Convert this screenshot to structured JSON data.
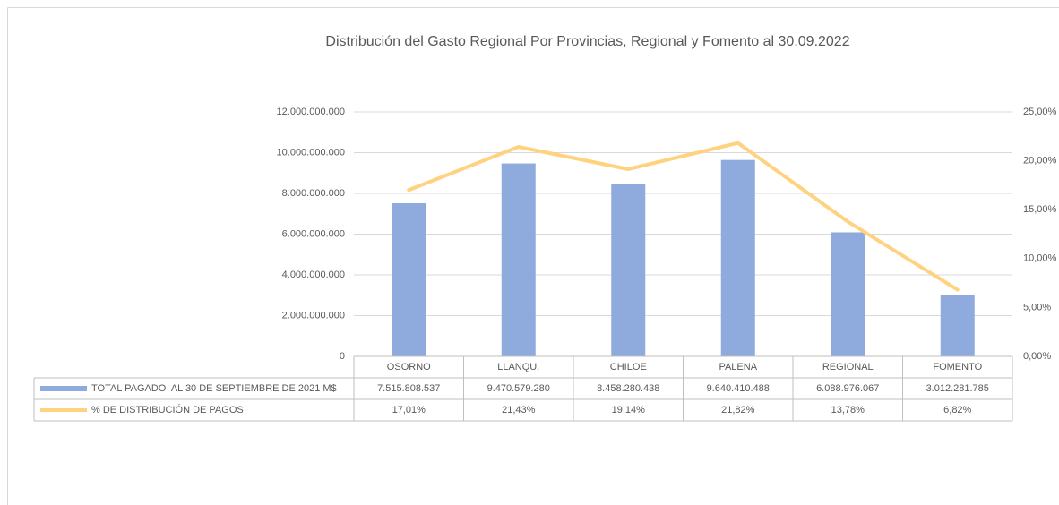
{
  "chart_data": {
    "type": "bar",
    "title": "Distribución del Gasto Regional Por Provincias, Regional y Fomento al 30.09.2022",
    "categories": [
      "OSORNO",
      "LLANQU.",
      "CHILOE",
      "PALENA",
      "REGIONAL",
      "FOMENTO"
    ],
    "series": [
      {
        "name": "TOTAL PAGADO  AL 30 DE SEPTIEMBRE DE 2021 M$",
        "type": "bar",
        "color": "#8faadc",
        "values": [
          7515808537,
          9470579280,
          8458280438,
          9640410488,
          6088976067,
          3012281785
        ],
        "value_labels": [
          "7.515.808.537",
          "9.470.579.280",
          "8.458.280.438",
          "9.640.410.488",
          "6.088.976.067",
          "3.012.281.785"
        ]
      },
      {
        "name": "% DE DISTRIBUCIÓN DE PAGOS",
        "type": "line",
        "axis": "y2",
        "color": "#ffd280",
        "values": [
          17.01,
          21.43,
          19.14,
          21.82,
          13.78,
          6.82
        ],
        "value_labels": [
          "17,01%",
          "21,43%",
          "19,14%",
          "21,82%",
          "13,78%",
          "6,82%"
        ]
      }
    ],
    "ylim": [
      0,
      12000000000
    ],
    "yticks": [
      0,
      {
        "value": 2000000000,
        "label": "2.000.000.000"
      },
      {
        "value": 4000000000,
        "label": "4.000.000.000"
      },
      {
        "value": 6000000000,
        "label": "6.000.000.000"
      },
      {
        "value": 8000000000,
        "label": "8.000.000.000"
      },
      {
        "value": 10000000000,
        "label": "10.000.000.000"
      },
      {
        "value": 12000000000,
        "label": "12.000.000.000"
      }
    ],
    "y2lim": [
      0,
      25
    ],
    "y2ticks": [
      {
        "value": 0,
        "label": "0,00%"
      },
      {
        "value": 5,
        "label": "5,00%"
      },
      {
        "value": 10,
        "label": "10,00%"
      },
      {
        "value": 15,
        "label": "15,00%"
      },
      {
        "value": 20,
        "label": "20,00%"
      },
      {
        "value": 25,
        "label": "25,00%"
      }
    ],
    "grid": true
  }
}
